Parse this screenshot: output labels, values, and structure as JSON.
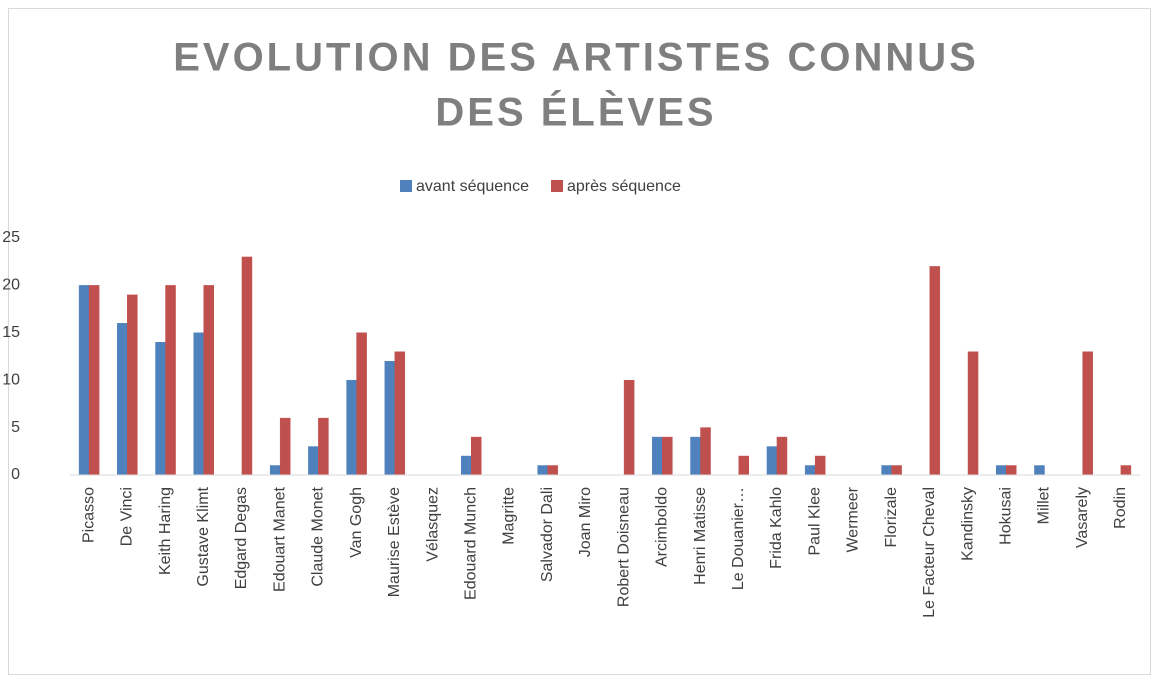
{
  "chart_data": {
    "type": "bar",
    "title": [
      "EVOLUTION DES ARTISTES CONNUS",
      "DES ÉLÈVES"
    ],
    "categories": [
      "Picasso",
      "De Vinci",
      "Keith Haring",
      "Gustave Klimt",
      "Edgard Degas",
      "Edouart Manet",
      "Claude Monet",
      "Van Gogh",
      "Maurise Estève",
      "Vélasquez",
      "Edouard Munch",
      "Magritte",
      "Salvador Dali",
      "Joan Miro",
      "Robert Doisneau",
      "Arcimboldo",
      "Henri Matisse",
      "Le Douanier…",
      "Frida Kahlo",
      "Paul Klee",
      "Wermeer",
      "Florizale",
      "Le Facteur Cheval",
      "Kandinsky",
      "Hokusai",
      "Millet",
      "Vasarely",
      "Rodin"
    ],
    "series": [
      {
        "name": "avant séquence",
        "color": "#4f81bd",
        "values": [
          20,
          16,
          14,
          15,
          0,
          1,
          3,
          10,
          12,
          0,
          2,
          0,
          1,
          0,
          0,
          4,
          4,
          0,
          3,
          1,
          0,
          1,
          0,
          0,
          1,
          1,
          0,
          0
        ]
      },
      {
        "name": "après séquence",
        "color": "#c0504d",
        "values": [
          20,
          19,
          20,
          20,
          23,
          6,
          6,
          15,
          13,
          0,
          4,
          0,
          1,
          0,
          10,
          4,
          5,
          2,
          4,
          2,
          0,
          1,
          22,
          13,
          1,
          0,
          13,
          1
        ]
      }
    ],
    "ylim": [
      0,
      25
    ],
    "yticks": [
      0,
      5,
      10,
      15,
      20,
      25
    ],
    "grid": false,
    "legend": "top"
  }
}
